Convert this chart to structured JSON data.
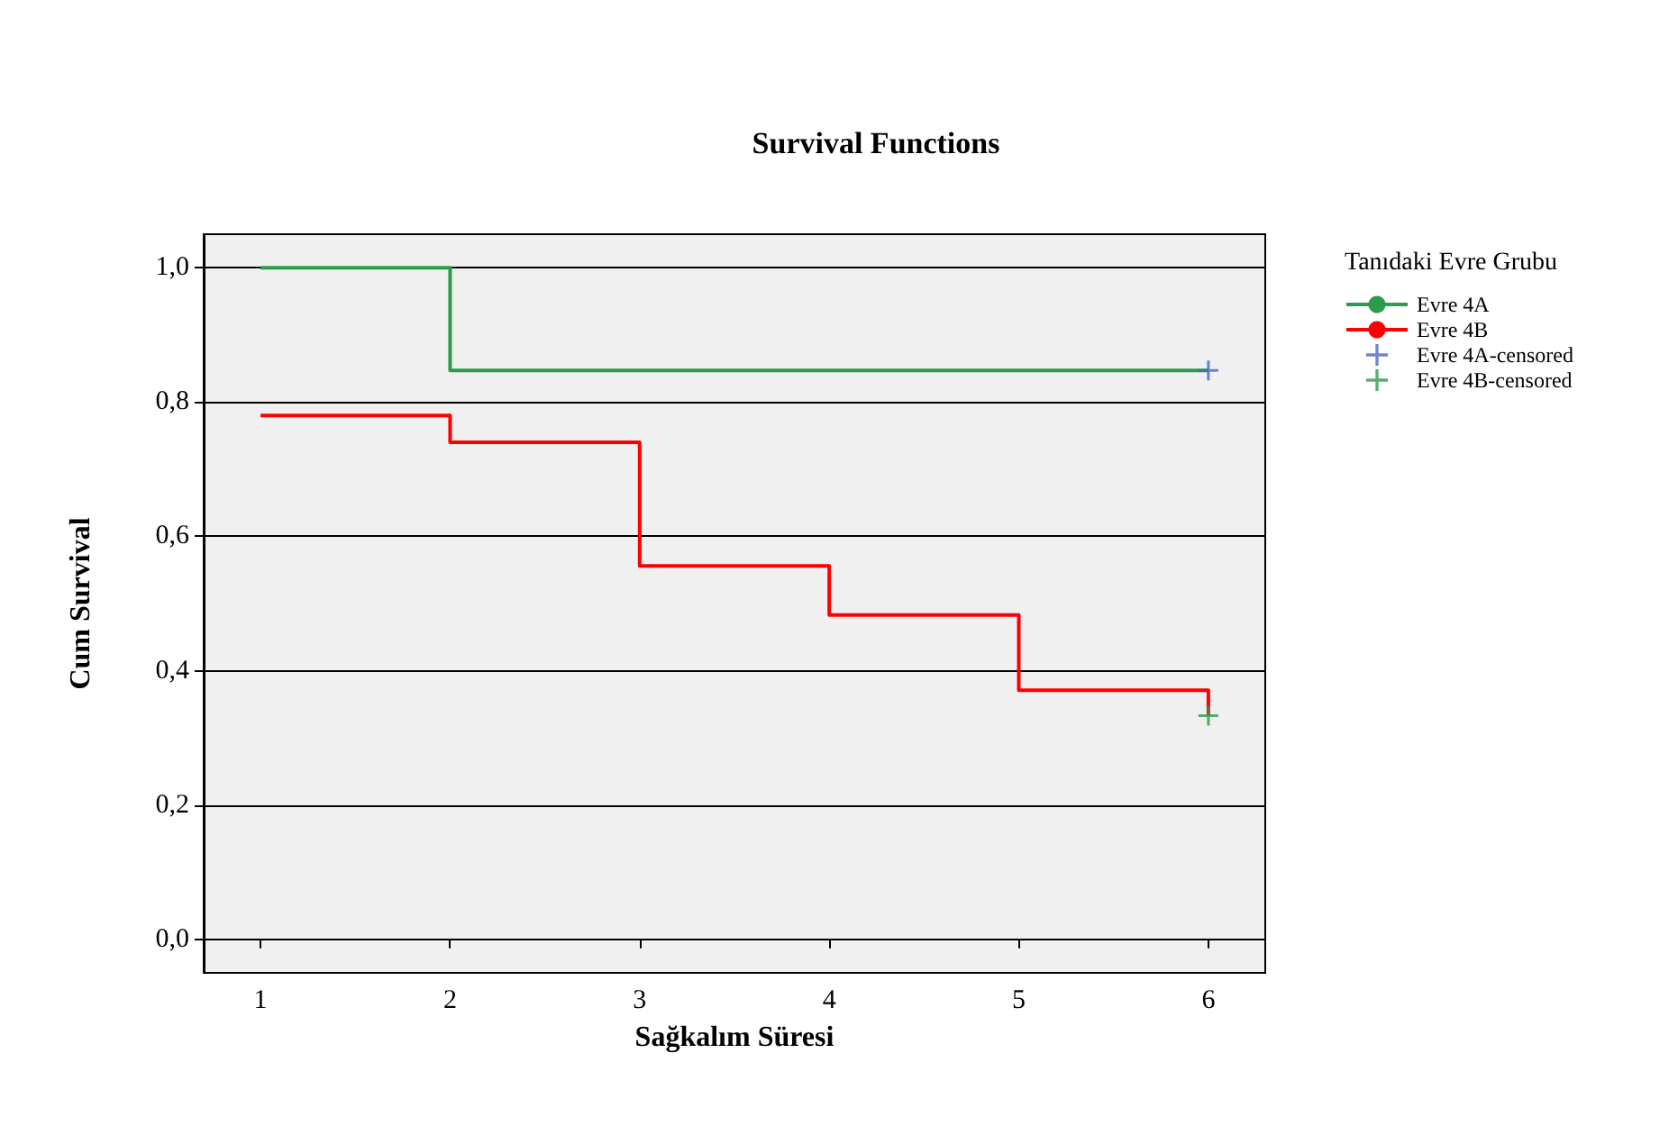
{
  "chart_data": {
    "type": "step",
    "title": "Survival Functions",
    "xlabel": "Sağkalım Süresi",
    "ylabel": "Cum Survival",
    "legend_title": "Tanıdaki Evre Grubu",
    "xlim": [
      0.7,
      6.3
    ],
    "xticks": [
      1,
      2,
      3,
      4,
      5,
      6
    ],
    "ylim": [
      -0.05,
      1.05
    ],
    "yticks": [
      {
        "value": 0,
        "label": "0,0"
      },
      {
        "value": 0.2,
        "label": "0,2"
      },
      {
        "value": 0.4,
        "label": "0,4"
      },
      {
        "value": 0.6,
        "label": "0,6"
      },
      {
        "value": 0.8,
        "label": "0,8"
      },
      {
        "value": 1,
        "label": "1,0"
      }
    ],
    "grid": "y",
    "legend": "right",
    "series": [
      {
        "name": "Evre 4A",
        "color": "#2e9a4c",
        "x": [
          1,
          2,
          6
        ],
        "values": [
          1,
          0.847,
          0.847
        ]
      },
      {
        "name": "Evre 4B",
        "color": "#ff0000",
        "x": [
          1,
          2,
          3,
          4,
          5,
          6
        ],
        "values": [
          0.78,
          0.74,
          0.556,
          0.483,
          0.371,
          0.333
        ]
      },
      {
        "name": "Evre 4A-censored",
        "type": "scatter",
        "marker": "cross",
        "color": "#4a66c0",
        "x": [
          6
        ],
        "values": [
          0.847
        ]
      },
      {
        "name": "Evre 4B-censored",
        "type": "scatter",
        "marker": "cross",
        "color": "#2e9a4c",
        "x": [
          6
        ],
        "values": [
          0.333
        ]
      }
    ]
  }
}
